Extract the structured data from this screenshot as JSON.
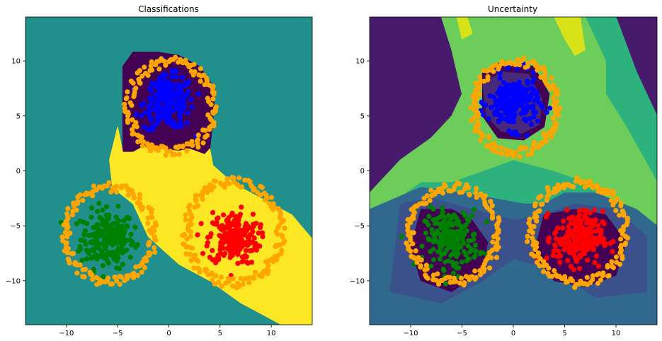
{
  "chart_data": [
    {
      "type": "scatter",
      "title": "Classifications",
      "xlabel": "",
      "ylabel": "",
      "xlim": [
        -14,
        14
      ],
      "ylim": [
        -14,
        14
      ],
      "x_ticks": [
        -10,
        -5,
        0,
        5,
        10
      ],
      "y_ticks": [
        -10,
        -5,
        0,
        5,
        10
      ],
      "grid": false,
      "background_color": "#21908d",
      "regions": [
        {
          "class": "blue",
          "color": "#440154",
          "polygon": [
            [
              -4.5,
              5
            ],
            [
              -4.5,
              9.5
            ],
            [
              -3.5,
              10.8
            ],
            [
              -1,
              10.8
            ],
            [
              1,
              10.5
            ],
            [
              3,
              9.5
            ],
            [
              4.5,
              7.5
            ],
            [
              4.3,
              4.5
            ],
            [
              4,
              2
            ],
            [
              3.5,
              1.5
            ],
            [
              2,
              2
            ],
            [
              1,
              1.8
            ],
            [
              -1,
              2
            ],
            [
              -2.5,
              2.2
            ],
            [
              -3.5,
              1.7
            ],
            [
              -4.5,
              1.7
            ],
            [
              -4.5,
              5
            ]
          ]
        },
        {
          "class": "orange",
          "color": "#fde725",
          "polygon": [
            [
              -5,
              4
            ],
            [
              -4.5,
              1.7
            ],
            [
              -3.5,
              1.7
            ],
            [
              -2.5,
              2.2
            ],
            [
              -1,
              2
            ],
            [
              1,
              1.8
            ],
            [
              2,
              2
            ],
            [
              3.5,
              1.5
            ],
            [
              4,
              2
            ],
            [
              4.3,
              0.5
            ],
            [
              5.5,
              -0.5
            ],
            [
              7,
              -1.5
            ],
            [
              9,
              -2.5
            ],
            [
              12,
              -4
            ],
            [
              14,
              -6.2
            ],
            [
              14,
              -14
            ],
            [
              11,
              -14
            ],
            [
              7,
              -12
            ],
            [
              4,
              -10
            ],
            [
              1,
              -8.5
            ],
            [
              -2,
              -6
            ],
            [
              -3.5,
              -3
            ],
            [
              -5.5,
              -1.5
            ],
            [
              -5.8,
              1
            ],
            [
              -5,
              4
            ]
          ]
        }
      ],
      "series": [
        {
          "color": "#008000",
          "center": [
            -6,
            -6.2
          ],
          "spread": 1.3,
          "count": 220,
          "kind": "cluster"
        },
        {
          "color": "#ffa500",
          "center": [
            -5.8,
            -5.8
          ],
          "radius": 4.3,
          "count": 140,
          "kind": "ring"
        },
        {
          "color": "#0000ff",
          "center": [
            0,
            6.2
          ],
          "spread": 1.2,
          "count": 220,
          "kind": "cluster"
        },
        {
          "color": "#ffa500",
          "center": [
            0.2,
            5.8
          ],
          "radius": 4.1,
          "count": 140,
          "kind": "ring"
        },
        {
          "color": "#ff0000",
          "center": [
            6.3,
            -6.1
          ],
          "spread": 1.2,
          "count": 220,
          "kind": "cluster"
        },
        {
          "color": "#ffa500",
          "center": [
            6.3,
            -5.6
          ],
          "radius": 4.6,
          "count": 150,
          "kind": "ring"
        }
      ]
    },
    {
      "type": "scatter",
      "title": "Uncertainty",
      "xlabel": "",
      "ylabel": "",
      "xlim": [
        -14,
        14
      ],
      "ylim": [
        -14,
        14
      ],
      "x_ticks": [
        -10,
        -5,
        0,
        5,
        10
      ],
      "y_ticks": [
        -10,
        -5,
        0,
        5,
        10
      ],
      "grid": false,
      "background_color": "#481a6c",
      "regions": [
        {
          "level": 1,
          "color": "#2db27d",
          "polygon": [
            [
              -14,
              -6
            ],
            [
              -12,
              -4
            ],
            [
              -10,
              -1
            ],
            [
              -7,
              1
            ],
            [
              -4,
              3
            ],
            [
              -2,
              5
            ],
            [
              -3,
              8
            ],
            [
              -4,
              12
            ],
            [
              -5,
              14
            ],
            [
              10,
              14
            ],
            [
              12,
              9
            ],
            [
              14,
              5
            ],
            [
              14,
              -14
            ],
            [
              8,
              -14
            ],
            [
              5,
              -12
            ],
            [
              2,
              -10
            ],
            [
              0,
              -12
            ],
            [
              -4,
              -14
            ],
            [
              -14,
              -14
            ]
          ]
        },
        {
          "level": 2,
          "color": "#6ccd5a",
          "polygon": [
            [
              -14,
              -2
            ],
            [
              -11,
              1
            ],
            [
              -8,
              3
            ],
            [
              -6,
              5
            ],
            [
              -5,
              7
            ],
            [
              -6,
              11
            ],
            [
              -7,
              14
            ],
            [
              7,
              14
            ],
            [
              9,
              10
            ],
            [
              9,
              7
            ],
            [
              11,
              4
            ],
            [
              14,
              -1
            ],
            [
              14,
              -6
            ],
            [
              10,
              -3
            ],
            [
              7,
              -1
            ],
            [
              4,
              0
            ],
            [
              0,
              1
            ],
            [
              -3,
              0
            ],
            [
              -6,
              -1
            ],
            [
              -9,
              -1
            ],
            [
              -12,
              -3
            ],
            [
              -14,
              -4
            ]
          ]
        },
        {
          "level": 3,
          "color": "#d8e219",
          "polygon": [
            [
              -5,
              12
            ],
            [
              -5.5,
              14
            ],
            [
              -4.5,
              14
            ],
            [
              -4,
              12.5
            ]
          ]
        },
        {
          "level": 3,
          "color": "#d8e219",
          "polygon": [
            [
              4,
              14
            ],
            [
              5,
              12
            ],
            [
              6,
              10.5
            ],
            [
              7,
              11
            ],
            [
              6.5,
              14
            ]
          ]
        },
        {
          "level": 4,
          "color": "#31688e",
          "polygon": [
            [
              -14,
              -3.5
            ],
            [
              -9,
              -1.5
            ],
            [
              -5,
              -2
            ],
            [
              -2,
              -2.5
            ],
            [
              1,
              -3
            ],
            [
              3,
              -3
            ],
            [
              5,
              -2
            ],
            [
              8,
              -2
            ],
            [
              12,
              -3.5
            ],
            [
              14,
              -5
            ],
            [
              14,
              -14
            ],
            [
              -14,
              -14
            ]
          ]
        },
        {
          "level": 5,
          "color": "#3b518b",
          "polygon": [
            [
              -11,
              -3
            ],
            [
              -8,
              -2.5
            ],
            [
              -4,
              -3.5
            ],
            [
              0,
              -4.5
            ],
            [
              3,
              -4
            ],
            [
              6,
              -3
            ],
            [
              10,
              -3.5
            ],
            [
              13,
              -6
            ],
            [
              13,
              -11
            ],
            [
              8,
              -11.5
            ],
            [
              4,
              -9
            ],
            [
              0,
              -8
            ],
            [
              -3,
              -10
            ],
            [
              -7,
              -12
            ],
            [
              -12,
              -11
            ]
          ]
        },
        {
          "level": 6,
          "color": "#440154",
          "polygon": [
            [
              -9,
              -3.5
            ],
            [
              -6,
              -3.5
            ],
            [
              -4,
              -4.5
            ],
            [
              -2.5,
              -6.5
            ],
            [
              -3,
              -9
            ],
            [
              -6,
              -11
            ],
            [
              -9,
              -10
            ],
            [
              -10,
              -7
            ]
          ]
        },
        {
          "level": 6,
          "color": "#440154",
          "polygon": [
            [
              3,
              -4
            ],
            [
              6,
              -3.5
            ],
            [
              9,
              -4
            ],
            [
              11,
              -6.5
            ],
            [
              10,
              -9.5
            ],
            [
              7,
              -10.5
            ],
            [
              4,
              -10
            ],
            [
              2,
              -7.5
            ]
          ]
        },
        {
          "level": 6,
          "color": "#440154",
          "polygon": [
            [
              -3,
              9
            ],
            [
              -1,
              10
            ],
            [
              2,
              9.5
            ],
            [
              3.5,
              7
            ],
            [
              3,
              4
            ],
            [
              1,
              2.8
            ],
            [
              -1.5,
              3
            ],
            [
              -3,
              5
            ]
          ]
        },
        {
          "level": 7,
          "color": "#482878",
          "polygon": [
            [
              -3,
              8
            ],
            [
              -1,
              9
            ],
            [
              1.5,
              8.8
            ],
            [
              2.8,
              6.5
            ],
            [
              2.5,
              4.2
            ],
            [
              0.8,
              3.4
            ],
            [
              -1.2,
              3.6
            ],
            [
              -2.6,
              5
            ]
          ]
        }
      ],
      "series": [
        {
          "color": "#008000",
          "center": [
            -6,
            -6.2
          ],
          "spread": 1.3,
          "count": 220,
          "kind": "cluster"
        },
        {
          "color": "#ffa500",
          "center": [
            -5.8,
            -5.8
          ],
          "radius": 4.3,
          "count": 140,
          "kind": "ring"
        },
        {
          "color": "#0000ff",
          "center": [
            0,
            6.2
          ],
          "spread": 1.2,
          "count": 220,
          "kind": "cluster"
        },
        {
          "color": "#ffa500",
          "center": [
            0.2,
            5.8
          ],
          "radius": 4.1,
          "count": 140,
          "kind": "ring"
        },
        {
          "color": "#ff0000",
          "center": [
            6.3,
            -6.1
          ],
          "spread": 1.2,
          "count": 220,
          "kind": "cluster"
        },
        {
          "color": "#ffa500",
          "center": [
            6.3,
            -5.6
          ],
          "radius": 4.6,
          "count": 150,
          "kind": "ring"
        }
      ]
    }
  ]
}
